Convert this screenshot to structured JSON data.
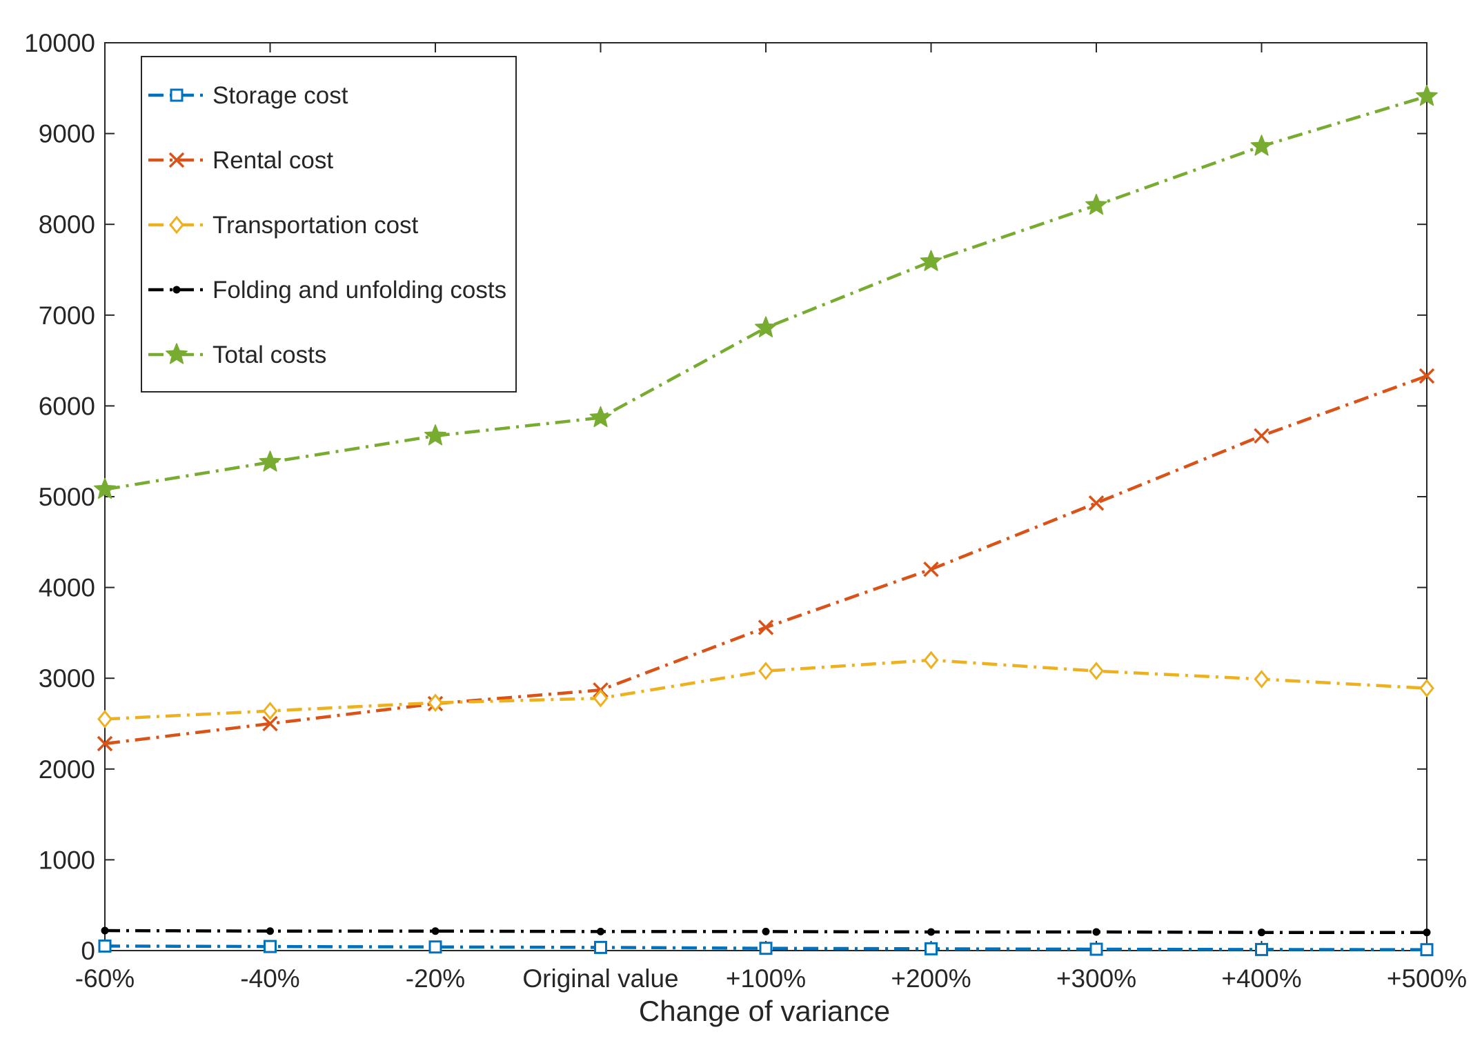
{
  "chart_data": {
    "type": "line",
    "title": "",
    "xlabel": "Change of variance",
    "ylabel": "",
    "categories": [
      "-60%",
      "-40%",
      "-20%",
      "Original value",
      "+100%",
      "+200%",
      "+300%",
      "+400%",
      "+500%"
    ],
    "ylim": [
      0,
      10000
    ],
    "yticks": [
      0,
      1000,
      2000,
      3000,
      4000,
      5000,
      6000,
      7000,
      8000,
      9000,
      10000
    ],
    "grid": false,
    "legend_position": "top-left",
    "series": [
      {
        "name": "Storage cost",
        "color": "#0072BD",
        "marker": "square",
        "line_style": "dash-dot",
        "values": [
          50,
          45,
          40,
          35,
          25,
          20,
          15,
          12,
          10
        ]
      },
      {
        "name": "Rental cost",
        "color": "#D95319",
        "marker": "x",
        "line_style": "dash-dot",
        "values": [
          2280,
          2500,
          2720,
          2870,
          3560,
          4200,
          4930,
          5670,
          6330
        ]
      },
      {
        "name": "Transportation cost",
        "color": "#EDB120",
        "marker": "diamond",
        "line_style": "dash-dot",
        "values": [
          2550,
          2640,
          2730,
          2780,
          3080,
          3200,
          3080,
          2990,
          2890
        ]
      },
      {
        "name": "Folding and unfolding costs",
        "color": "#000000",
        "marker": "dot",
        "line_style": "dash-dot",
        "values": [
          220,
          215,
          215,
          210,
          210,
          205,
          205,
          200,
          200
        ]
      },
      {
        "name": "Total costs",
        "color": "#77AC30",
        "marker": "star",
        "line_style": "dash-dot",
        "values": [
          5080,
          5380,
          5670,
          5870,
          6860,
          7590,
          8210,
          8860,
          9410
        ]
      }
    ]
  }
}
